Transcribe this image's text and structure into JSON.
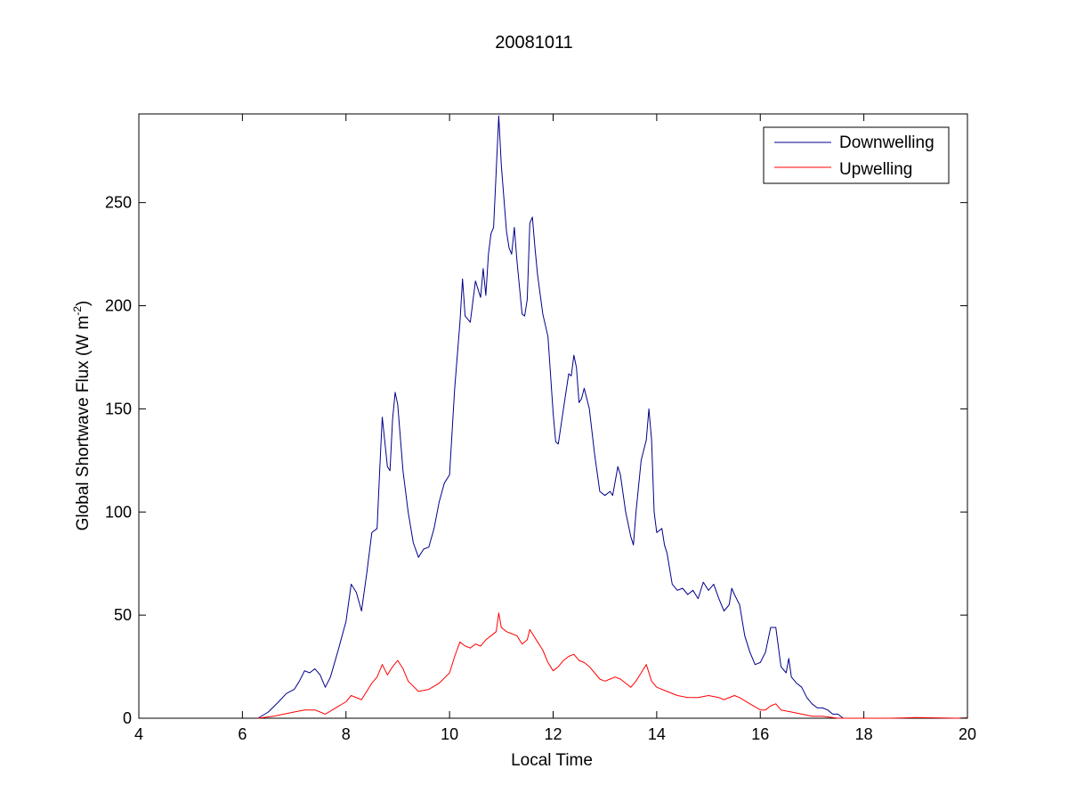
{
  "chart_data": {
    "type": "line",
    "title": "20081011",
    "xlabel": "Local Time",
    "ylabel_main": "Global Shortwave Flux (W m",
    "ylabel_sup": "-2",
    "ylabel_close": ")",
    "xlim": [
      4,
      20
    ],
    "ylim": [
      0,
      293
    ],
    "xticks": [
      4,
      6,
      8,
      10,
      12,
      14,
      16,
      18,
      20
    ],
    "yticks": [
      0,
      50,
      100,
      150,
      200,
      250
    ],
    "grid": false,
    "legend_position": "top-right",
    "series": [
      {
        "name": "Downwelling",
        "color": "#00008b",
        "points": [
          [
            6.3,
            0
          ],
          [
            6.5,
            3
          ],
          [
            6.7,
            8
          ],
          [
            6.85,
            12
          ],
          [
            7.0,
            14
          ],
          [
            7.1,
            18
          ],
          [
            7.2,
            23
          ],
          [
            7.3,
            22
          ],
          [
            7.4,
            24
          ],
          [
            7.5,
            21
          ],
          [
            7.6,
            15
          ],
          [
            7.7,
            20
          ],
          [
            7.85,
            33
          ],
          [
            8.0,
            47
          ],
          [
            8.1,
            65
          ],
          [
            8.2,
            61
          ],
          [
            8.3,
            52
          ],
          [
            8.4,
            70
          ],
          [
            8.5,
            90
          ],
          [
            8.6,
            92
          ],
          [
            8.65,
            120
          ],
          [
            8.7,
            146
          ],
          [
            8.8,
            122
          ],
          [
            8.85,
            120
          ],
          [
            8.9,
            145
          ],
          [
            8.95,
            158
          ],
          [
            9.0,
            152
          ],
          [
            9.1,
            120
          ],
          [
            9.2,
            100
          ],
          [
            9.3,
            85
          ],
          [
            9.4,
            78
          ],
          [
            9.5,
            82
          ],
          [
            9.6,
            83
          ],
          [
            9.7,
            92
          ],
          [
            9.8,
            105
          ],
          [
            9.9,
            114
          ],
          [
            10.0,
            118
          ],
          [
            10.1,
            160
          ],
          [
            10.2,
            192
          ],
          [
            10.25,
            213
          ],
          [
            10.3,
            195
          ],
          [
            10.4,
            192
          ],
          [
            10.5,
            212
          ],
          [
            10.6,
            204
          ],
          [
            10.65,
            218
          ],
          [
            10.7,
            205
          ],
          [
            10.75,
            225
          ],
          [
            10.8,
            235
          ],
          [
            10.85,
            238
          ],
          [
            10.9,
            265
          ],
          [
            10.95,
            292
          ],
          [
            11.0,
            268
          ],
          [
            11.1,
            236
          ],
          [
            11.15,
            228
          ],
          [
            11.2,
            225
          ],
          [
            11.25,
            238
          ],
          [
            11.3,
            222
          ],
          [
            11.4,
            196
          ],
          [
            11.45,
            195
          ],
          [
            11.5,
            203
          ],
          [
            11.55,
            240
          ],
          [
            11.6,
            243
          ],
          [
            11.65,
            228
          ],
          [
            11.7,
            215
          ],
          [
            11.8,
            196
          ],
          [
            11.9,
            185
          ],
          [
            12.0,
            148
          ],
          [
            12.05,
            134
          ],
          [
            12.1,
            133
          ],
          [
            12.2,
            150
          ],
          [
            12.3,
            167
          ],
          [
            12.35,
            166
          ],
          [
            12.4,
            176
          ],
          [
            12.45,
            170
          ],
          [
            12.5,
            153
          ],
          [
            12.55,
            155
          ],
          [
            12.6,
            160
          ],
          [
            12.7,
            150
          ],
          [
            12.8,
            128
          ],
          [
            12.9,
            110
          ],
          [
            13.0,
            108
          ],
          [
            13.1,
            110
          ],
          [
            13.15,
            108
          ],
          [
            13.2,
            115
          ],
          [
            13.25,
            122
          ],
          [
            13.3,
            118
          ],
          [
            13.4,
            100
          ],
          [
            13.5,
            88
          ],
          [
            13.55,
            84
          ],
          [
            13.6,
            100
          ],
          [
            13.7,
            125
          ],
          [
            13.8,
            135
          ],
          [
            13.85,
            150
          ],
          [
            13.9,
            135
          ],
          [
            13.95,
            100
          ],
          [
            14.0,
            90
          ],
          [
            14.1,
            92
          ],
          [
            14.15,
            84
          ],
          [
            14.2,
            80
          ],
          [
            14.3,
            65
          ],
          [
            14.4,
            62
          ],
          [
            14.5,
            63
          ],
          [
            14.6,
            60
          ],
          [
            14.7,
            62
          ],
          [
            14.8,
            58
          ],
          [
            14.9,
            66
          ],
          [
            15.0,
            62
          ],
          [
            15.1,
            65
          ],
          [
            15.2,
            58
          ],
          [
            15.3,
            52
          ],
          [
            15.4,
            55
          ],
          [
            15.45,
            63
          ],
          [
            15.5,
            60
          ],
          [
            15.6,
            55
          ],
          [
            15.7,
            40
          ],
          [
            15.8,
            32
          ],
          [
            15.9,
            26
          ],
          [
            16.0,
            27
          ],
          [
            16.1,
            32
          ],
          [
            16.2,
            44
          ],
          [
            16.3,
            44
          ],
          [
            16.4,
            25
          ],
          [
            16.5,
            22
          ],
          [
            16.55,
            29
          ],
          [
            16.6,
            20
          ],
          [
            16.7,
            17
          ],
          [
            16.8,
            15
          ],
          [
            16.9,
            10
          ],
          [
            17.0,
            7
          ],
          [
            17.1,
            5
          ],
          [
            17.2,
            5
          ],
          [
            17.3,
            4
          ],
          [
            17.4,
            2
          ],
          [
            17.5,
            2
          ],
          [
            17.6,
            0
          ]
        ]
      },
      {
        "name": "Upwelling",
        "color": "#ff0000",
        "points": [
          [
            6.3,
            0
          ],
          [
            6.6,
            1
          ],
          [
            6.8,
            2
          ],
          [
            7.0,
            3
          ],
          [
            7.2,
            4
          ],
          [
            7.4,
            4
          ],
          [
            7.5,
            3
          ],
          [
            7.6,
            2
          ],
          [
            7.8,
            5
          ],
          [
            8.0,
            8
          ],
          [
            8.1,
            11
          ],
          [
            8.3,
            9
          ],
          [
            8.5,
            17
          ],
          [
            8.6,
            20
          ],
          [
            8.7,
            26
          ],
          [
            8.8,
            21
          ],
          [
            8.9,
            25
          ],
          [
            9.0,
            28
          ],
          [
            9.1,
            24
          ],
          [
            9.2,
            18
          ],
          [
            9.4,
            13
          ],
          [
            9.6,
            14
          ],
          [
            9.8,
            17
          ],
          [
            10.0,
            22
          ],
          [
            10.1,
            30
          ],
          [
            10.2,
            37
          ],
          [
            10.3,
            35
          ],
          [
            10.4,
            34
          ],
          [
            10.5,
            36
          ],
          [
            10.6,
            35
          ],
          [
            10.7,
            38
          ],
          [
            10.8,
            40
          ],
          [
            10.9,
            42
          ],
          [
            10.95,
            51
          ],
          [
            11.0,
            44
          ],
          [
            11.1,
            42
          ],
          [
            11.2,
            41
          ],
          [
            11.3,
            40
          ],
          [
            11.4,
            36
          ],
          [
            11.5,
            38
          ],
          [
            11.55,
            43
          ],
          [
            11.6,
            41
          ],
          [
            11.7,
            37
          ],
          [
            11.8,
            33
          ],
          [
            11.9,
            27
          ],
          [
            12.0,
            23
          ],
          [
            12.1,
            25
          ],
          [
            12.2,
            28
          ],
          [
            12.3,
            30
          ],
          [
            12.4,
            31
          ],
          [
            12.5,
            28
          ],
          [
            12.6,
            27
          ],
          [
            12.7,
            25
          ],
          [
            12.8,
            22
          ],
          [
            12.9,
            19
          ],
          [
            13.0,
            18
          ],
          [
            13.1,
            19
          ],
          [
            13.2,
            20
          ],
          [
            13.3,
            19
          ],
          [
            13.4,
            17
          ],
          [
            13.5,
            15
          ],
          [
            13.6,
            18
          ],
          [
            13.7,
            22
          ],
          [
            13.8,
            26
          ],
          [
            13.9,
            18
          ],
          [
            14.0,
            15
          ],
          [
            14.2,
            13
          ],
          [
            14.4,
            11
          ],
          [
            14.6,
            10
          ],
          [
            14.8,
            10
          ],
          [
            15.0,
            11
          ],
          [
            15.2,
            10
          ],
          [
            15.3,
            9
          ],
          [
            15.5,
            11
          ],
          [
            15.6,
            10
          ],
          [
            15.8,
            7
          ],
          [
            16.0,
            4
          ],
          [
            16.1,
            4
          ],
          [
            16.2,
            6
          ],
          [
            16.3,
            7
          ],
          [
            16.4,
            4
          ],
          [
            16.6,
            3
          ],
          [
            16.8,
            2
          ],
          [
            17.0,
            1
          ],
          [
            17.2,
            1
          ],
          [
            17.5,
            0
          ],
          [
            18.5,
            0
          ],
          [
            19.0,
            0.3
          ],
          [
            19.3,
            0.2
          ],
          [
            19.8,
            0
          ],
          [
            20.0,
            0.2
          ]
        ]
      }
    ]
  }
}
